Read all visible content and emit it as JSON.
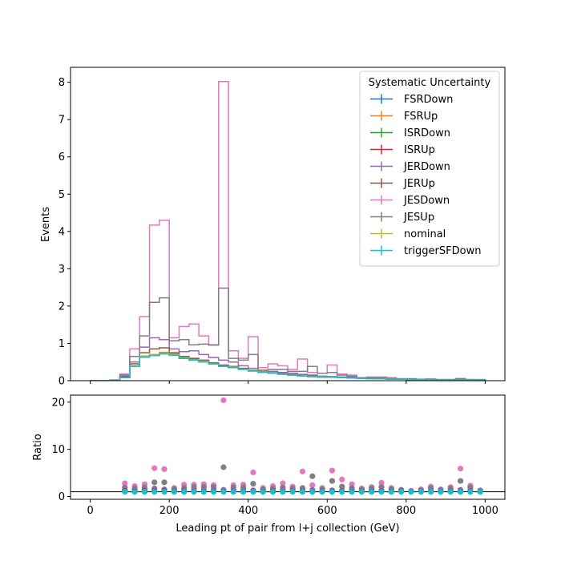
{
  "chart_data": [
    {
      "type": "step",
      "xlabel": "",
      "ylabel": "Events",
      "xlim": [
        -50,
        1050
      ],
      "ylim": [
        0,
        8.4
      ],
      "yticks": [
        0,
        1,
        2,
        3,
        4,
        5,
        6,
        7,
        8
      ],
      "xticks": [
        0,
        200,
        400,
        600,
        800,
        1000
      ],
      "legend": {
        "title": "Systematic Uncertainty",
        "placement": "top-right",
        "entries": [
          "FSRDown",
          "FSRUp",
          "ISRDown",
          "ISRUp",
          "JERDown",
          "JERUp",
          "JESDown",
          "JESUp",
          "nominal",
          "triggerSFDown"
        ]
      },
      "bin_edges": [
        0,
        25,
        50,
        75,
        100,
        125,
        150,
        175,
        200,
        225,
        250,
        275,
        300,
        325,
        350,
        375,
        400,
        425,
        450,
        475,
        500,
        525,
        550,
        575,
        600,
        625,
        650,
        675,
        700,
        725,
        750,
        775,
        800,
        825,
        850,
        875,
        900,
        925,
        950,
        975,
        1000
      ],
      "series": [
        {
          "name": "FSRDown",
          "color": "#1f77b4",
          "values": [
            0,
            0,
            0.01,
            0.08,
            0.38,
            0.63,
            0.67,
            0.72,
            0.68,
            0.6,
            0.55,
            0.5,
            0.45,
            0.38,
            0.35,
            0.31,
            0.26,
            0.23,
            0.2,
            0.18,
            0.15,
            0.13,
            0.11,
            0.1,
            0.09,
            0.08,
            0.07,
            0.06,
            0.05,
            0.05,
            0.04,
            0.04,
            0.03,
            0.03,
            0.03,
            0.02,
            0.02,
            0.02,
            0.02,
            0.02
          ]
        },
        {
          "name": "FSRUp",
          "color": "#ff7f0e",
          "values": [
            0,
            0,
            0.01,
            0.08,
            0.4,
            0.66,
            0.7,
            0.76,
            0.72,
            0.64,
            0.58,
            0.53,
            0.47,
            0.4,
            0.37,
            0.32,
            0.27,
            0.24,
            0.21,
            0.19,
            0.16,
            0.14,
            0.12,
            0.1,
            0.09,
            0.08,
            0.07,
            0.06,
            0.05,
            0.05,
            0.04,
            0.04,
            0.03,
            0.03,
            0.03,
            0.02,
            0.02,
            0.02,
            0.02,
            0.02
          ]
        },
        {
          "name": "ISRDown",
          "color": "#2ca02c",
          "values": [
            0,
            0,
            0.01,
            0.08,
            0.38,
            0.64,
            0.68,
            0.73,
            0.69,
            0.61,
            0.56,
            0.51,
            0.45,
            0.39,
            0.35,
            0.31,
            0.26,
            0.23,
            0.2,
            0.18,
            0.15,
            0.13,
            0.11,
            0.1,
            0.09,
            0.08,
            0.07,
            0.06,
            0.05,
            0.05,
            0.04,
            0.04,
            0.03,
            0.03,
            0.03,
            0.02,
            0.02,
            0.02,
            0.02,
            0.02
          ]
        },
        {
          "name": "ISRUp",
          "color": "#d62728",
          "values": [
            0,
            0,
            0.01,
            0.08,
            0.39,
            0.65,
            0.69,
            0.74,
            0.7,
            0.62,
            0.57,
            0.52,
            0.46,
            0.39,
            0.36,
            0.31,
            0.27,
            0.23,
            0.2,
            0.18,
            0.15,
            0.13,
            0.11,
            0.1,
            0.09,
            0.08,
            0.07,
            0.06,
            0.05,
            0.05,
            0.04,
            0.04,
            0.03,
            0.03,
            0.03,
            0.02,
            0.02,
            0.02,
            0.02,
            0.02
          ]
        },
        {
          "name": "JERDown",
          "color": "#9467bd",
          "values": [
            0,
            0,
            0.02,
            0.12,
            0.5,
            0.9,
            1.15,
            1.1,
            0.85,
            0.78,
            0.8,
            0.7,
            0.62,
            0.55,
            0.5,
            0.4,
            0.33,
            0.28,
            0.25,
            0.22,
            0.2,
            0.17,
            0.15,
            0.12,
            0.11,
            0.1,
            0.09,
            0.08,
            0.07,
            0.06,
            0.05,
            0.05,
            0.04,
            0.04,
            0.03,
            0.03,
            0.03,
            0.02,
            0.03,
            0.02
          ]
        },
        {
          "name": "JERUp",
          "color": "#8c564b",
          "values": [
            0,
            0,
            0.02,
            0.1,
            0.45,
            0.75,
            0.85,
            0.88,
            0.75,
            0.65,
            0.6,
            0.55,
            0.48,
            0.42,
            0.38,
            0.33,
            0.28,
            0.24,
            0.21,
            0.19,
            0.16,
            0.14,
            0.12,
            0.1,
            0.09,
            0.08,
            0.07,
            0.06,
            0.05,
            0.05,
            0.04,
            0.04,
            0.03,
            0.03,
            0.03,
            0.02,
            0.02,
            0.02,
            0.02,
            0.02
          ]
        },
        {
          "name": "JESDown",
          "color": "#e377c2",
          "values": [
            0,
            0,
            0.02,
            0.18,
            0.85,
            1.72,
            4.17,
            4.3,
            1.15,
            1.45,
            1.52,
            1.2,
            0.95,
            8.02,
            0.8,
            0.6,
            1.18,
            0.35,
            0.45,
            0.4,
            0.3,
            0.58,
            0.22,
            0.2,
            0.42,
            0.18,
            0.15,
            0.08,
            0.1,
            0.1,
            0.08,
            0.05,
            0.05,
            0.03,
            0.05,
            0.03,
            0.03,
            0.06,
            0.03,
            0.03
          ]
        },
        {
          "name": "JESUp",
          "color": "#7f7f7f",
          "values": [
            0,
            0,
            0.01,
            0.15,
            0.65,
            1.2,
            2.1,
            2.22,
            1.07,
            1.1,
            0.96,
            0.98,
            0.96,
            2.48,
            0.6,
            0.55,
            0.7,
            0.28,
            0.3,
            0.3,
            0.25,
            0.25,
            0.38,
            0.2,
            0.22,
            0.15,
            0.12,
            0.08,
            0.08,
            0.08,
            0.06,
            0.05,
            0.05,
            0.03,
            0.04,
            0.03,
            0.03,
            0.05,
            0.03,
            0.03
          ]
        },
        {
          "name": "nominal",
          "color": "#bcbd22",
          "values": [
            0,
            0,
            0.01,
            0.08,
            0.39,
            0.65,
            0.69,
            0.74,
            0.7,
            0.62,
            0.56,
            0.52,
            0.46,
            0.39,
            0.36,
            0.31,
            0.27,
            0.23,
            0.2,
            0.18,
            0.15,
            0.13,
            0.11,
            0.1,
            0.09,
            0.08,
            0.07,
            0.06,
            0.05,
            0.05,
            0.04,
            0.04,
            0.03,
            0.03,
            0.03,
            0.02,
            0.02,
            0.02,
            0.02,
            0.02
          ]
        },
        {
          "name": "triggerSFDown",
          "color": "#17becf",
          "values": [
            0,
            0,
            0.01,
            0.08,
            0.38,
            0.63,
            0.67,
            0.72,
            0.68,
            0.6,
            0.55,
            0.5,
            0.45,
            0.38,
            0.35,
            0.3,
            0.26,
            0.22,
            0.2,
            0.17,
            0.15,
            0.13,
            0.11,
            0.1,
            0.09,
            0.08,
            0.07,
            0.06,
            0.05,
            0.05,
            0.04,
            0.04,
            0.03,
            0.03,
            0.03,
            0.02,
            0.02,
            0.02,
            0.02,
            0.02
          ]
        }
      ]
    },
    {
      "type": "scatter",
      "xlabel": "Leading pt of pair from l+j collection (GeV)",
      "ylabel": "Ratio",
      "xlim": [
        -50,
        1050
      ],
      "ylim": [
        -0.6,
        21.5
      ],
      "yticks": [
        0,
        10,
        20
      ],
      "xticks": [
        0,
        200,
        400,
        600,
        800,
        1000
      ],
      "reference_line": 1,
      "x": [
        87.5,
        112.5,
        137.5,
        162.5,
        187.5,
        212.5,
        237.5,
        262.5,
        287.5,
        312.5,
        337.5,
        362.5,
        387.5,
        412.5,
        437.5,
        462.5,
        487.5,
        512.5,
        537.5,
        562.5,
        587.5,
        612.5,
        637.5,
        662.5,
        687.5,
        712.5,
        737.5,
        762.5,
        787.5,
        812.5,
        837.5,
        862.5,
        887.5,
        912.5,
        937.5,
        962.5,
        987.5
      ],
      "series": [
        {
          "name": "JESDown",
          "color": "#e377c2",
          "values": [
            2.8,
            2.2,
            2.6,
            6.0,
            5.8,
            1.8,
            2.5,
            2.5,
            2.6,
            2.4,
            20.4,
            2.4,
            2.5,
            5.1,
            1.8,
            2.2,
            2.8,
            2.1,
            5.3,
            2.4,
            1.8,
            5.5,
            3.6,
            2.6,
            1.7,
            2.0,
            2.9,
            1.8,
            1.4,
            1.2,
            1.5,
            2.1,
            1.5,
            2.0,
            5.9,
            2.3,
            1.3
          ]
        },
        {
          "name": "JESUp",
          "color": "#7f7f7f",
          "values": [
            1.9,
            1.7,
            1.9,
            3.0,
            3.0,
            1.6,
            1.8,
            2.0,
            2.0,
            2.0,
            6.2,
            1.9,
            1.9,
            2.7,
            1.5,
            1.7,
            1.9,
            1.7,
            1.8,
            4.3,
            1.6,
            3.3,
            2.1,
            1.8,
            1.5,
            1.7,
            2.0,
            1.6,
            1.4,
            1.1,
            1.3,
            1.8,
            1.4,
            1.7,
            3.3,
            1.9,
            1.2
          ]
        },
        {
          "name": "JERDown",
          "color": "#9467bd",
          "values": [
            1.4,
            1.3,
            1.4,
            1.7,
            1.5,
            1.2,
            1.3,
            1.4,
            1.4,
            1.4,
            1.4,
            1.4,
            1.3,
            1.3,
            1.2,
            1.3,
            1.4,
            1.3,
            1.3,
            1.4,
            1.2,
            1.3,
            1.3,
            1.3,
            1.2,
            1.3,
            1.3,
            1.2,
            1.2,
            1.1,
            1.2,
            1.3,
            1.2,
            1.3,
            1.4,
            1.3,
            1.1
          ]
        },
        {
          "name": "JERUp",
          "color": "#8c564b",
          "values": [
            1.2,
            1.15,
            1.2,
            1.25,
            1.2,
            1.1,
            1.1,
            1.1,
            1.1,
            1.1,
            1.1,
            1.1,
            1.1,
            1.1,
            1.1,
            1.1,
            1.1,
            1.1,
            1.1,
            1.1,
            1.1,
            1.1,
            1.1,
            1.1,
            1.1,
            1.1,
            1.1,
            1.1,
            1.1,
            1.05,
            1.05,
            1.1,
            1.05,
            1.1,
            1.1,
            1.1,
            1.05
          ]
        },
        {
          "name": "triggerSFDown",
          "color": "#17becf",
          "values": [
            0.97,
            0.97,
            0.97,
            0.97,
            0.97,
            0.97,
            0.97,
            0.97,
            0.97,
            0.97,
            0.97,
            0.97,
            0.97,
            0.97,
            0.97,
            0.97,
            0.97,
            0.97,
            0.97,
            0.97,
            0.97,
            0.97,
            0.97,
            0.97,
            0.97,
            0.97,
            0.97,
            0.97,
            0.97,
            0.97,
            0.97,
            0.97,
            0.97,
            0.97,
            0.97,
            0.97,
            0.97
          ]
        }
      ]
    }
  ]
}
